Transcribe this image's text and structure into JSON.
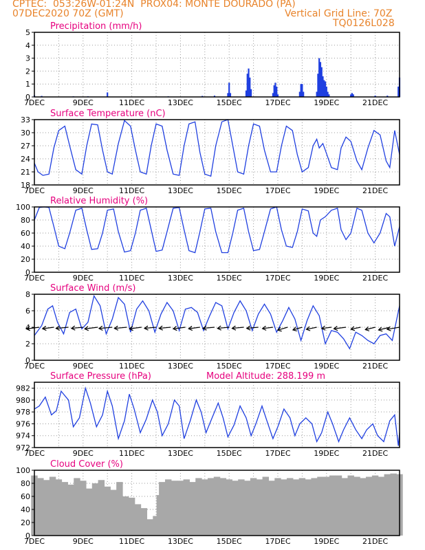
{
  "header": {
    "line1": "CPTEC:  053:26W-01:24N  PROX04: MONTE DOURADO (PA)",
    "line2": "07DEC2020 70Z (GMT)",
    "grid_line": "Vertical Grid Line: 70Z",
    "code": "TQ0126L028"
  },
  "colors": {
    "header": "#e8832a",
    "title": "#e6007e",
    "line": "#1f3fe0",
    "cloud": "#a8a8a8",
    "axis": "#000000"
  },
  "chart_data": [
    {
      "type": "bar",
      "title": "Precipitation (mm/h)",
      "ylim": [
        0,
        5
      ],
      "yticks": [
        0,
        1,
        2,
        3,
        4,
        5
      ],
      "xlim": [
        7,
        22
      ],
      "xticks": [
        "7DEC",
        "9DEC",
        "11DEC",
        "13DEC",
        "15DEC",
        "17DEC",
        "19DEC",
        "21DEC"
      ],
      "bars": [
        [
          7.0,
          0.12
        ],
        [
          7.3,
          0.08
        ],
        [
          8.6,
          0.05
        ],
        [
          9.2,
          0.05
        ],
        [
          10.0,
          0.35
        ],
        [
          12.5,
          0.05
        ],
        [
          13.9,
          0.08
        ],
        [
          14.4,
          0.1
        ],
        [
          14.95,
          0.3
        ],
        [
          15.0,
          1.1
        ],
        [
          15.05,
          0.3
        ],
        [
          15.7,
          0.5
        ],
        [
          15.75,
          1.8
        ],
        [
          15.8,
          2.2
        ],
        [
          15.85,
          1.5
        ],
        [
          15.9,
          0.6
        ],
        [
          16.8,
          0.3
        ],
        [
          16.85,
          0.9
        ],
        [
          16.9,
          1.1
        ],
        [
          16.95,
          0.8
        ],
        [
          17.0,
          0.2
        ],
        [
          17.9,
          0.4
        ],
        [
          17.95,
          1.0
        ],
        [
          18.0,
          1.0
        ],
        [
          18.05,
          0.4
        ],
        [
          18.6,
          0.4
        ],
        [
          18.65,
          1.8
        ],
        [
          18.7,
          3.0
        ],
        [
          18.75,
          2.7
        ],
        [
          18.8,
          2.3
        ],
        [
          18.85,
          1.6
        ],
        [
          18.9,
          1.3
        ],
        [
          18.95,
          1.2
        ],
        [
          19.0,
          0.8
        ],
        [
          19.05,
          0.4
        ],
        [
          19.1,
          0.2
        ],
        [
          20.0,
          0.2
        ],
        [
          20.05,
          0.3
        ],
        [
          20.1,
          0.2
        ],
        [
          21.0,
          0.1
        ],
        [
          21.5,
          0.1
        ],
        [
          21.95,
          0.8
        ],
        [
          22.0,
          1.5
        ]
      ]
    },
    {
      "type": "line",
      "title": "Surface Temperature (nC)",
      "ylim": [
        18,
        33
      ],
      "yticks": [
        18,
        21,
        24,
        27,
        30,
        33
      ],
      "xlim": [
        7,
        22
      ],
      "xticks": [
        "7DEC",
        "9DEC",
        "11DEC",
        "13DEC",
        "15DEC",
        "17DEC",
        "19DEC",
        "21DEC"
      ],
      "x": [
        7.0,
        7.15,
        7.35,
        7.6,
        7.8,
        8.0,
        8.25,
        8.45,
        8.7,
        8.95,
        9.15,
        9.35,
        9.6,
        9.8,
        10.0,
        10.2,
        10.45,
        10.7,
        10.95,
        11.15,
        11.35,
        11.6,
        11.8,
        12.0,
        12.25,
        12.45,
        12.7,
        12.95,
        13.15,
        13.35,
        13.6,
        13.8,
        14.0,
        14.25,
        14.45,
        14.7,
        14.95,
        15.15,
        15.35,
        15.6,
        15.8,
        16.0,
        16.25,
        16.45,
        16.7,
        16.95,
        17.15,
        17.35,
        17.6,
        17.8,
        18.0,
        18.25,
        18.45,
        18.6,
        18.7,
        18.85,
        18.95,
        19.2,
        19.45,
        19.6,
        19.8,
        20.0,
        20.25,
        20.45,
        20.7,
        20.95,
        21.2,
        21.45,
        21.6,
        21.8,
        22.0
      ],
      "y": [
        23.0,
        21.0,
        20.2,
        20.5,
        26.5,
        30.5,
        31.5,
        27.0,
        21.5,
        20.5,
        27.0,
        32.0,
        31.8,
        26.0,
        21.0,
        20.5,
        27.5,
        32.8,
        31.5,
        26.0,
        21.0,
        20.5,
        27.0,
        32.0,
        31.5,
        26.0,
        20.5,
        20.2,
        27.0,
        32.0,
        32.5,
        25.5,
        20.5,
        20.0,
        27.0,
        32.5,
        33.0,
        27.0,
        21.0,
        20.5,
        27.0,
        32.0,
        31.5,
        26.0,
        21.0,
        21.0,
        27.0,
        31.5,
        30.5,
        25.0,
        21.0,
        22.0,
        27.0,
        28.5,
        26.5,
        27.5,
        26.0,
        22.0,
        21.5,
        26.5,
        29.0,
        28.0,
        23.5,
        21.5,
        26.5,
        30.5,
        29.5,
        23.5,
        22.0,
        30.5,
        25.0
      ]
    },
    {
      "type": "line",
      "title": "Relative Humidity (%)",
      "ylim": [
        0,
        100
      ],
      "yticks": [
        0,
        20,
        40,
        60,
        80,
        100
      ],
      "xlim": [
        7,
        22
      ],
      "xticks": [
        "7DEC",
        "9DEC",
        "11DEC",
        "13DEC",
        "15DEC",
        "17DEC",
        "19DEC",
        "21DEC"
      ],
      "x": [
        7.0,
        7.2,
        7.4,
        7.6,
        7.8,
        8.0,
        8.25,
        8.45,
        8.7,
        8.95,
        9.15,
        9.35,
        9.6,
        9.8,
        10.0,
        10.25,
        10.45,
        10.7,
        10.95,
        11.15,
        11.35,
        11.6,
        11.8,
        12.0,
        12.25,
        12.45,
        12.7,
        12.95,
        13.15,
        13.35,
        13.6,
        13.8,
        14.0,
        14.25,
        14.45,
        14.7,
        14.95,
        15.15,
        15.35,
        15.6,
        15.8,
        16.0,
        16.25,
        16.45,
        16.7,
        16.95,
        17.15,
        17.35,
        17.6,
        17.8,
        18.0,
        18.25,
        18.45,
        18.6,
        18.75,
        18.95,
        19.2,
        19.45,
        19.6,
        19.8,
        20.0,
        20.25,
        20.45,
        20.7,
        20.95,
        21.2,
        21.45,
        21.6,
        21.8,
        22.0
      ],
      "y": [
        80.0,
        99.0,
        100.0,
        99.0,
        70.0,
        40.0,
        36.0,
        60.0,
        95.0,
        98.0,
        65.0,
        35.0,
        36.0,
        60.0,
        95.0,
        97.0,
        62.0,
        31.0,
        33.0,
        60.0,
        95.0,
        98.0,
        65.0,
        32.0,
        34.0,
        62.0,
        98.0,
        99.0,
        65.0,
        33.0,
        30.0,
        62.0,
        97.0,
        98.0,
        62.0,
        30.0,
        30.0,
        60.0,
        95.0,
        98.0,
        62.0,
        33.0,
        35.0,
        62.0,
        97.0,
        100.0,
        65.0,
        40.0,
        38.0,
        62.0,
        97.0,
        94.0,
        60.0,
        55.0,
        80.0,
        85.0,
        95.0,
        98.0,
        65.0,
        50.0,
        60.0,
        98.0,
        95.0,
        60.0,
        45.0,
        60.0,
        90.0,
        85.0,
        40.0,
        70.0
      ]
    },
    {
      "type": "line",
      "title": "Surface Wind (m/s)",
      "ylim": [
        0,
        8
      ],
      "yticks": [
        0,
        2,
        4,
        6,
        8
      ],
      "xlim": [
        7,
        22
      ],
      "xticks": [
        "7DEC",
        "9DEC",
        "11DEC",
        "13DEC",
        "15DEC",
        "17DEC",
        "19DEC",
        "21DEC"
      ],
      "x": [
        7.0,
        7.3,
        7.55,
        7.75,
        7.95,
        8.2,
        8.45,
        8.7,
        8.95,
        9.2,
        9.45,
        9.7,
        9.95,
        10.2,
        10.45,
        10.7,
        10.95,
        11.2,
        11.45,
        11.7,
        11.95,
        12.2,
        12.45,
        12.7,
        12.95,
        13.2,
        13.45,
        13.7,
        13.95,
        14.2,
        14.45,
        14.7,
        14.95,
        15.2,
        15.45,
        15.7,
        15.95,
        16.2,
        16.45,
        16.7,
        16.95,
        17.2,
        17.45,
        17.7,
        17.95,
        18.2,
        18.45,
        18.7,
        18.95,
        19.2,
        19.45,
        19.7,
        19.95,
        20.2,
        20.45,
        20.7,
        20.95,
        21.2,
        21.45,
        21.7,
        22.0
      ],
      "y": [
        3.0,
        4.2,
        6.2,
        6.6,
        4.6,
        3.2,
        5.8,
        6.2,
        3.8,
        4.6,
        7.8,
        6.6,
        3.2,
        5.0,
        7.6,
        6.8,
        3.4,
        6.2,
        7.2,
        6.0,
        3.4,
        5.6,
        7.0,
        6.0,
        3.6,
        6.2,
        6.4,
        5.8,
        3.6,
        5.4,
        7.0,
        6.6,
        3.8,
        5.8,
        7.2,
        6.0,
        3.6,
        5.6,
        6.8,
        5.6,
        3.4,
        4.8,
        6.4,
        5.0,
        2.4,
        4.8,
        6.6,
        5.4,
        2.0,
        3.6,
        3.4,
        2.6,
        1.4,
        3.4,
        3.0,
        2.4,
        2.0,
        3.0,
        3.2,
        2.4,
        6.6
      ],
      "arrows": {
        "x": [
          7.2,
          7.8,
          8.4,
          9.0,
          9.6,
          10.2,
          10.8,
          11.4,
          12.0,
          12.6,
          13.2,
          13.8,
          14.4,
          15.0,
          15.6,
          16.2,
          16.8,
          17.4,
          18.0,
          18.6,
          19.2,
          19.8,
          20.4,
          21.0,
          21.6,
          22.0
        ],
        "speed": [
          4.0,
          3.0,
          3.5,
          3.0,
          4.0,
          4.0,
          3.5,
          3.5,
          3.0,
          3.0,
          3.5,
          3.0,
          3.0,
          3.0,
          3.0,
          3.0,
          2.5,
          3.5,
          3.0,
          3.0,
          2.0,
          3.5,
          2.5,
          3.0,
          4.0,
          4.0
        ],
        "dir_deg": [
          70,
          70,
          75,
          75,
          70,
          75,
          75,
          70,
          75,
          75,
          70,
          70,
          75,
          75,
          75,
          75,
          70,
          50,
          50,
          60,
          70,
          70,
          60,
          55,
          55,
          65
        ]
      }
    },
    {
      "type": "line",
      "title": "Surface Pressure (hPa)",
      "annotation": "Model Altitude: 288.199 m",
      "ylim": [
        972,
        983
      ],
      "yticks": [
        972,
        974,
        976,
        978,
        980,
        982
      ],
      "xlim": [
        7,
        22
      ],
      "xticks": [
        "7DEC",
        "9DEC",
        "11DEC",
        "13DEC",
        "15DEC",
        "17DEC",
        "19DEC",
        "21DEC"
      ],
      "x": [
        7.0,
        7.2,
        7.45,
        7.7,
        7.9,
        8.1,
        8.4,
        8.6,
        8.85,
        9.1,
        9.3,
        9.55,
        9.8,
        10.0,
        10.2,
        10.45,
        10.7,
        10.9,
        11.1,
        11.35,
        11.6,
        11.85,
        12.05,
        12.25,
        12.5,
        12.75,
        12.95,
        13.15,
        13.4,
        13.65,
        13.85,
        14.05,
        14.3,
        14.55,
        14.75,
        14.95,
        15.2,
        15.45,
        15.7,
        15.9,
        16.1,
        16.35,
        16.55,
        16.8,
        17.0,
        17.25,
        17.5,
        17.7,
        17.9,
        18.15,
        18.4,
        18.6,
        18.8,
        19.05,
        19.25,
        19.5,
        19.7,
        19.95,
        20.2,
        20.45,
        20.65,
        20.9,
        21.1,
        21.35,
        21.6,
        21.8,
        21.95,
        22.0
      ],
      "y": [
        978.5,
        979.0,
        980.5,
        977.5,
        978.2,
        981.5,
        980.0,
        975.5,
        977.0,
        982.0,
        979.5,
        975.5,
        977.5,
        981.5,
        979.0,
        973.5,
        976.5,
        981.0,
        978.5,
        974.5,
        976.8,
        980.0,
        978.0,
        974.0,
        976.0,
        980.0,
        979.0,
        973.5,
        976.5,
        980.0,
        978.0,
        974.5,
        977.0,
        979.5,
        977.0,
        973.8,
        975.8,
        979.0,
        977.0,
        974.0,
        976.0,
        979.0,
        976.5,
        973.5,
        975.5,
        978.5,
        977.0,
        974.0,
        976.0,
        977.0,
        976.0,
        973.0,
        974.5,
        978.0,
        976.0,
        973.0,
        975.0,
        977.0,
        975.0,
        973.5,
        975.0,
        976.0,
        974.0,
        973.0,
        976.5,
        977.5,
        972.3,
        974.5
      ]
    },
    {
      "type": "bar",
      "title": "Cloud Cover (%)",
      "ylim": [
        0,
        100
      ],
      "yticks": [
        0,
        20,
        40,
        60,
        80,
        100
      ],
      "xlim": [
        7,
        22
      ],
      "xticks": [
        "7DEC",
        "9DEC",
        "11DEC",
        "13DEC",
        "15DEC",
        "17DEC",
        "19DEC",
        "21DEC"
      ],
      "bars": [
        [
          7.0,
          92
        ],
        [
          7.25,
          88
        ],
        [
          7.5,
          85
        ],
        [
          7.75,
          90
        ],
        [
          8.0,
          86
        ],
        [
          8.25,
          82
        ],
        [
          8.5,
          78
        ],
        [
          8.75,
          88
        ],
        [
          9.0,
          84
        ],
        [
          9.25,
          72
        ],
        [
          9.5,
          80
        ],
        [
          9.75,
          85
        ],
        [
          10.0,
          75
        ],
        [
          10.25,
          70
        ],
        [
          10.5,
          82
        ],
        [
          10.75,
          60
        ],
        [
          11.0,
          58
        ],
        [
          11.25,
          48
        ],
        [
          11.5,
          42
        ],
        [
          11.75,
          25
        ],
        [
          11.85,
          5
        ],
        [
          12.0,
          30
        ],
        [
          12.15,
          62
        ],
        [
          12.25,
          82
        ],
        [
          12.5,
          86
        ],
        [
          12.75,
          84
        ],
        [
          13.0,
          84
        ],
        [
          13.25,
          86
        ],
        [
          13.5,
          82
        ],
        [
          13.75,
          88
        ],
        [
          14.0,
          86
        ],
        [
          14.25,
          88
        ],
        [
          14.5,
          90
        ],
        [
          14.75,
          88
        ],
        [
          15.0,
          86
        ],
        [
          15.25,
          84
        ],
        [
          15.5,
          86
        ],
        [
          15.75,
          84
        ],
        [
          16.0,
          88
        ],
        [
          16.25,
          86
        ],
        [
          16.5,
          90
        ],
        [
          16.75,
          84
        ],
        [
          17.0,
          88
        ],
        [
          17.2,
          62
        ],
        [
          17.25,
          86
        ],
        [
          17.5,
          88
        ],
        [
          17.75,
          86
        ],
        [
          18.0,
          88
        ],
        [
          18.25,
          86
        ],
        [
          18.5,
          88
        ],
        [
          18.75,
          90
        ],
        [
          19.0,
          90
        ],
        [
          19.25,
          92
        ],
        [
          19.5,
          92
        ],
        [
          19.75,
          88
        ],
        [
          20.0,
          92
        ],
        [
          20.25,
          90
        ],
        [
          20.5,
          88
        ],
        [
          20.75,
          90
        ],
        [
          21.0,
          92
        ],
        [
          21.25,
          90
        ],
        [
          21.5,
          94
        ],
        [
          21.75,
          95
        ],
        [
          22.0,
          94
        ]
      ]
    }
  ]
}
